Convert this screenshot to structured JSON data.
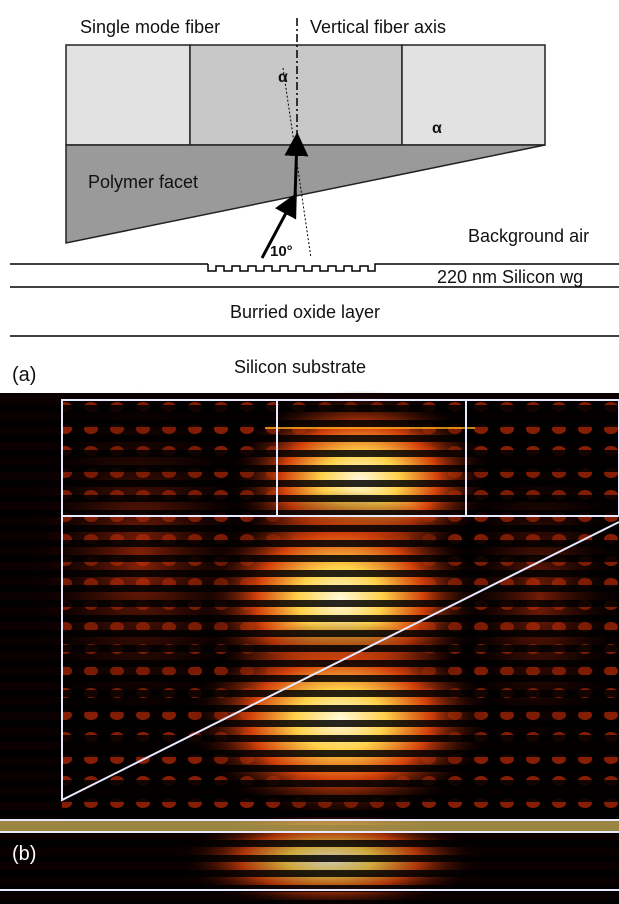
{
  "panel_a": {
    "label": "(a)",
    "fiber": "Single mode fiber",
    "axis": "Vertical fiber axis",
    "angle_fiber": "α",
    "angle_facet": "α",
    "facet": "Polymer facet",
    "tilt": "10°",
    "background": "Background air",
    "waveguide": "220 nm Silicon wg",
    "oxide": "Burried oxide layer",
    "substrate": "Silicon substrate"
  },
  "panel_b": {
    "label": "(b)"
  }
}
